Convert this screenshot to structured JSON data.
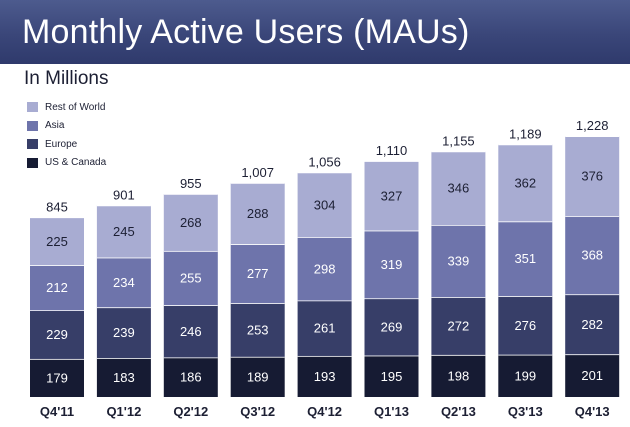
{
  "banner": {
    "title": "Monthly Active Users (MAUs)"
  },
  "subtitle": "In Millions",
  "colors": {
    "banner_bg": "#3a4679",
    "Rest of World": "#a8acd2",
    "Asia": "#6e74ab",
    "Europe": "#373e68",
    "US & Canada": "#161b33"
  },
  "legend": [
    {
      "label": "Rest of World",
      "color": "#a8acd2"
    },
    {
      "label": "Asia",
      "color": "#6e74ab"
    },
    {
      "label": "Europe",
      "color": "#373e68"
    },
    {
      "label": "US & Canada",
      "color": "#161b33"
    }
  ],
  "chart_data": {
    "type": "bar",
    "stacked": true,
    "title": "Monthly Active Users (MAUs)",
    "subtitle": "In Millions",
    "categories": [
      "Q4'11",
      "Q1'12",
      "Q2'12",
      "Q3'12",
      "Q4'12",
      "Q1'13",
      "Q2'13",
      "Q3'13",
      "Q4'13"
    ],
    "series": [
      {
        "name": "US & Canada",
        "values": [
          179,
          183,
          186,
          189,
          193,
          195,
          198,
          199,
          201
        ]
      },
      {
        "name": "Europe",
        "values": [
          229,
          239,
          246,
          253,
          261,
          269,
          272,
          276,
          282
        ]
      },
      {
        "name": "Asia",
        "values": [
          212,
          234,
          255,
          277,
          298,
          319,
          339,
          351,
          368
        ]
      },
      {
        "name": "Rest of World",
        "values": [
          225,
          245,
          268,
          288,
          304,
          327,
          346,
          362,
          376
        ]
      }
    ],
    "totals": [
      "845",
      "901",
      "955",
      "1,007",
      "1,056",
      "1,110",
      "1,155",
      "1,189",
      "1,228"
    ],
    "ylim": [
      0,
      1228
    ],
    "grid": false,
    "legend_position": "top-left"
  }
}
